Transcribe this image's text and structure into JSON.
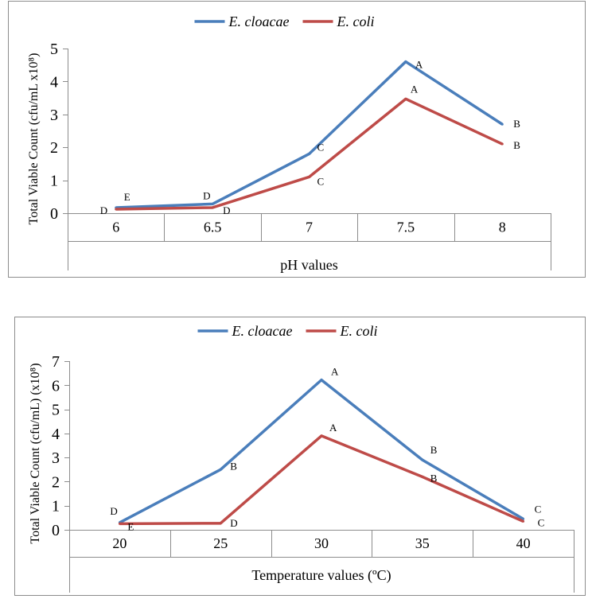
{
  "chart_data": [
    {
      "type": "line",
      "title": "",
      "xlabel": "pH values",
      "ylabel": "Total Viable Count (cfu/mL x10⁸)",
      "categories": [
        "6",
        "6.5",
        "7",
        "7.5",
        "8"
      ],
      "ylim": [
        0,
        5
      ],
      "yticks": [
        "0",
        "1",
        "2",
        "3",
        "4",
        "5"
      ],
      "legend_position": "top",
      "series": [
        {
          "name": "E. cloacae",
          "color": "#4a7ebb",
          "values": [
            0.17,
            0.28,
            1.8,
            4.6,
            2.7
          ],
          "labels": [
            "E",
            "D",
            "C",
            "A",
            "B"
          ]
        },
        {
          "name": "E. coli",
          "color": "#be4b48",
          "values": [
            0.12,
            0.17,
            1.1,
            3.47,
            2.1
          ],
          "labels": [
            "D",
            "D",
            "C",
            "A",
            "B"
          ]
        }
      ]
    },
    {
      "type": "line",
      "title": "",
      "xlabel": "Temperature values (ºC)",
      "ylabel": "Total Viable Count (cfu/mL) (x10⁸)",
      "categories": [
        "20",
        "25",
        "30",
        "35",
        "40"
      ],
      "ylim": [
        0,
        7
      ],
      "yticks": [
        "0",
        "1",
        "2",
        "3",
        "4",
        "5",
        "6",
        "7"
      ],
      "legend_position": "top",
      "series": [
        {
          "name": "E. cloacae",
          "color": "#4a7ebb",
          "values": [
            0.3,
            2.5,
            6.22,
            2.9,
            0.45
          ],
          "labels": [
            "D",
            "B",
            "A",
            "B",
            "C"
          ]
        },
        {
          "name": "E. coli",
          "color": "#be4b48",
          "values": [
            0.25,
            0.27,
            3.9,
            2.2,
            0.35
          ],
          "labels": [
            "E",
            "D",
            "A",
            "B",
            "C"
          ]
        }
      ]
    }
  ]
}
